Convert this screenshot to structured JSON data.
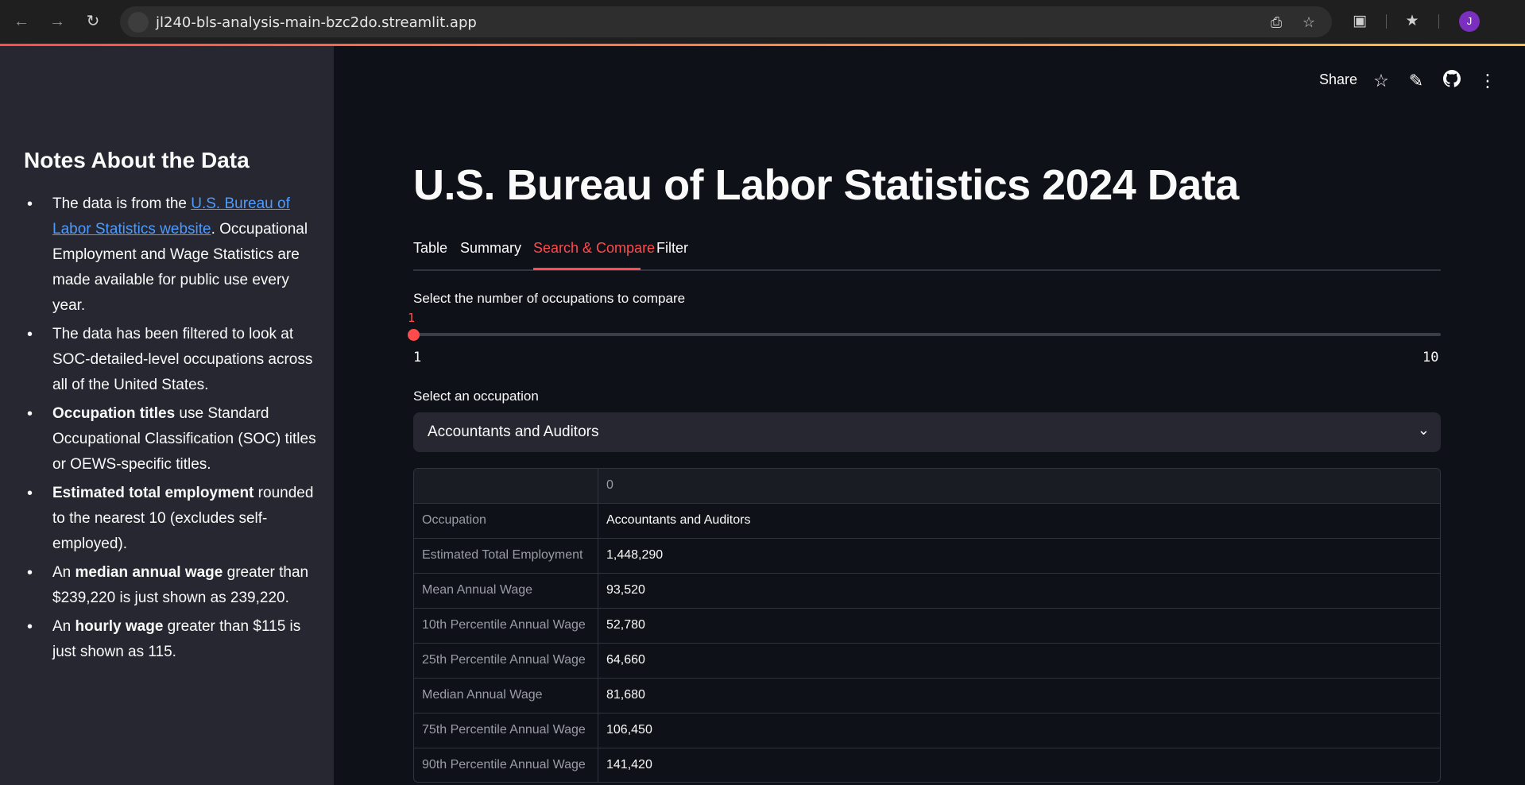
{
  "browser": {
    "url": "jl240-bls-analysis-main-bzc2do.streamlit.app",
    "avatar_letter": "J"
  },
  "sidebar": {
    "heading": "Notes About the Data",
    "notes": [
      {
        "pre": "The data is from the ",
        "link": "U.S. Bureau of Labor Statistics website",
        "post": ". Occupational Employment and Wage Statistics are made available for public use every year."
      },
      {
        "pre": "The data has been filtered to look at SOC-detailed-level occupations across all of the United States."
      },
      {
        "bold": "Occupation titles",
        "post": " use Standard Occupational Classification (SOC) titles or OEWS-specific titles."
      },
      {
        "bold": "Estimated total employment",
        "post": " rounded to the nearest 10 (excludes self-employed)."
      },
      {
        "pre": "An ",
        "bold": "median annual wage",
        "post": " greater than $239,220 is just shown as 239,220."
      },
      {
        "pre": "An ",
        "bold": "hourly wage",
        "post": " greater than $115 is just shown as 115."
      }
    ]
  },
  "header": {
    "share_label": "Share"
  },
  "main": {
    "title": "U.S. Bureau of Labor Statistics 2024 Data",
    "tabs": [
      "Table",
      "Summary",
      "Search & Compare",
      "Filter"
    ],
    "active_tab": "Search & Compare",
    "slider": {
      "label": "Select the number of occupations to compare",
      "value": "1",
      "min": "1",
      "max": "10"
    },
    "select": {
      "label": "Select an occupation",
      "value": "Accountants and Auditors"
    },
    "table": {
      "column_header": "0",
      "rows": [
        {
          "label": "Occupation",
          "value": "Accountants and Auditors"
        },
        {
          "label": "Estimated Total Employment",
          "value": "1,448,290"
        },
        {
          "label": "Mean Annual Wage",
          "value": "93,520"
        },
        {
          "label": "10th Percentile Annual Wage",
          "value": "52,780"
        },
        {
          "label": "25th Percentile Annual Wage",
          "value": "64,660"
        },
        {
          "label": "Median Annual Wage",
          "value": "81,680"
        },
        {
          "label": "75th Percentile Annual Wage",
          "value": "106,450"
        },
        {
          "label": "90th Percentile Annual Wage",
          "value": "141,420"
        }
      ]
    }
  },
  "icons": [
    "back-icon",
    "forward-icon",
    "reload-icon",
    "site-info-icon",
    "install-icon",
    "bookmark-star-icon",
    "extensions-icon",
    "bookmarks-icon",
    "star-icon",
    "edit-icon",
    "github-icon",
    "more-icon",
    "chevron-down-icon"
  ]
}
